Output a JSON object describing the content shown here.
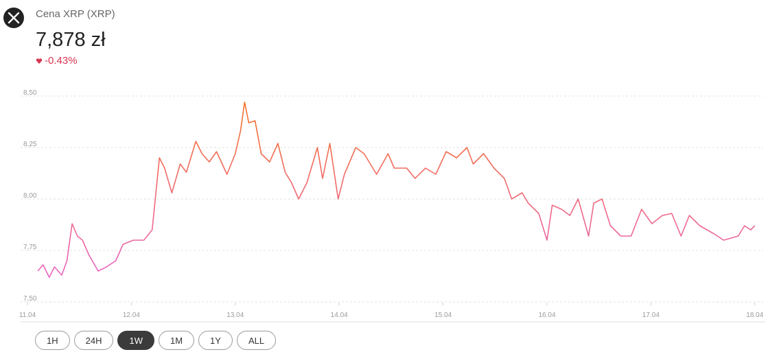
{
  "header": {
    "title": "Cena XRP (XRP)",
    "price": "7,878 zł",
    "change": "-0.43%"
  },
  "chart_data": {
    "type": "line",
    "x": [
      0.1,
      0.15,
      0.21,
      0.26,
      0.33,
      0.38,
      0.43,
      0.48,
      0.53,
      0.59,
      0.68,
      0.76,
      0.85,
      0.92,
      1.02,
      1.12,
      1.2,
      1.27,
      1.32,
      1.39,
      1.47,
      1.53,
      1.62,
      1.68,
      1.75,
      1.82,
      1.92,
      2.0,
      2.05,
      2.09,
      2.13,
      2.19,
      2.25,
      2.33,
      2.41,
      2.48,
      2.54,
      2.61,
      2.69,
      2.79,
      2.84,
      2.91,
      2.99,
      3.05,
      3.16,
      3.24,
      3.36,
      3.47,
      3.53,
      3.65,
      3.73,
      3.83,
      3.93,
      4.03,
      4.13,
      4.23,
      4.29,
      4.39,
      4.49,
      4.59,
      4.66,
      4.76,
      4.82,
      4.92,
      5.0,
      5.05,
      5.14,
      5.22,
      5.3,
      5.4,
      5.45,
      5.53,
      5.61,
      5.71,
      5.81,
      5.91,
      6.01,
      6.11,
      6.2,
      6.29,
      6.37,
      6.47,
      6.61,
      6.7,
      6.84,
      6.9,
      6.96,
      7.0
    ],
    "values": [
      7.65,
      7.68,
      7.62,
      7.67,
      7.63,
      7.7,
      7.88,
      7.82,
      7.8,
      7.73,
      7.65,
      7.67,
      7.7,
      7.78,
      7.8,
      7.8,
      7.85,
      8.2,
      8.15,
      8.03,
      8.17,
      8.13,
      8.28,
      8.22,
      8.18,
      8.23,
      8.12,
      8.22,
      8.33,
      8.47,
      8.37,
      8.38,
      8.22,
      8.18,
      8.27,
      8.13,
      8.08,
      8.0,
      8.08,
      8.25,
      8.1,
      8.27,
      8.0,
      8.12,
      8.25,
      8.22,
      8.12,
      8.22,
      8.15,
      8.15,
      8.1,
      8.15,
      8.12,
      8.23,
      8.2,
      8.25,
      8.17,
      8.22,
      8.15,
      8.1,
      8.0,
      8.03,
      7.98,
      7.93,
      7.8,
      7.97,
      7.95,
      7.92,
      8.0,
      7.82,
      7.98,
      8.0,
      7.87,
      7.82,
      7.82,
      7.95,
      7.88,
      7.92,
      7.93,
      7.82,
      7.92,
      7.87,
      7.83,
      7.8,
      7.82,
      7.87,
      7.85,
      7.87
    ],
    "gradient": [
      "#e862d8",
      "#f5721f"
    ],
    "xlim": [
      0,
      7.08
    ],
    "ylim": [
      7.5,
      8.5
    ],
    "xticks": [
      {
        "value": 0,
        "label": "11.04"
      },
      {
        "value": 1,
        "label": "12.04"
      },
      {
        "value": 2,
        "label": "13.04"
      },
      {
        "value": 3,
        "label": "14.04"
      },
      {
        "value": 4,
        "label": "15.04"
      },
      {
        "value": 5,
        "label": "16.04"
      },
      {
        "value": 6,
        "label": "17.04"
      },
      {
        "value": 7,
        "label": "18.04"
      }
    ],
    "yticks": [
      {
        "value": 7.5,
        "label": "7,50"
      },
      {
        "value": 7.75,
        "label": "7,75"
      },
      {
        "value": 8.0,
        "label": "8,00"
      },
      {
        "value": 8.25,
        "label": "8,25"
      },
      {
        "value": 8.5,
        "label": "8,50"
      }
    ],
    "grid": true
  },
  "range_buttons": [
    "1H",
    "24H",
    "1W",
    "1M",
    "1Y",
    "ALL"
  ]
}
